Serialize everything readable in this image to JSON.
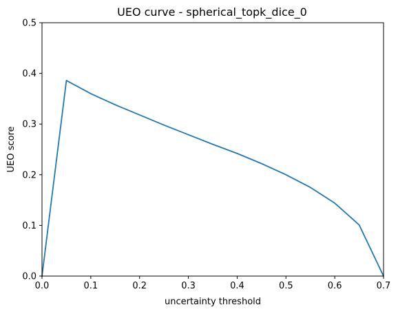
{
  "chart_data": {
    "type": "line",
    "title": "UEO curve - spherical_topk_dice_0",
    "xlabel": "uncertainty threshold",
    "ylabel": "UEO score",
    "xlim": [
      0.0,
      0.7
    ],
    "ylim": [
      0.0,
      0.5
    ],
    "xticks": [
      0.0,
      0.1,
      0.2,
      0.3,
      0.4,
      0.5,
      0.6,
      0.7
    ],
    "xtick_labels": [
      "0.0",
      "0.1",
      "0.2",
      "0.3",
      "0.4",
      "0.5",
      "0.6",
      "0.7"
    ],
    "yticks": [
      0.0,
      0.1,
      0.2,
      0.3,
      0.4,
      0.5
    ],
    "ytick_labels": [
      "0.0",
      "0.1",
      "0.2",
      "0.3",
      "0.4",
      "0.5"
    ],
    "grid": false,
    "series": [
      {
        "color": "#1f77b4",
        "x": [
          0.0,
          0.05,
          0.1,
          0.15,
          0.2,
          0.25,
          0.3,
          0.35,
          0.4,
          0.45,
          0.5,
          0.55,
          0.6,
          0.65,
          0.7
        ],
        "y": [
          0.0,
          0.386,
          0.36,
          0.338,
          0.318,
          0.298,
          0.279,
          0.26,
          0.242,
          0.222,
          0.2,
          0.175,
          0.144,
          0.101,
          0.0
        ]
      }
    ]
  }
}
